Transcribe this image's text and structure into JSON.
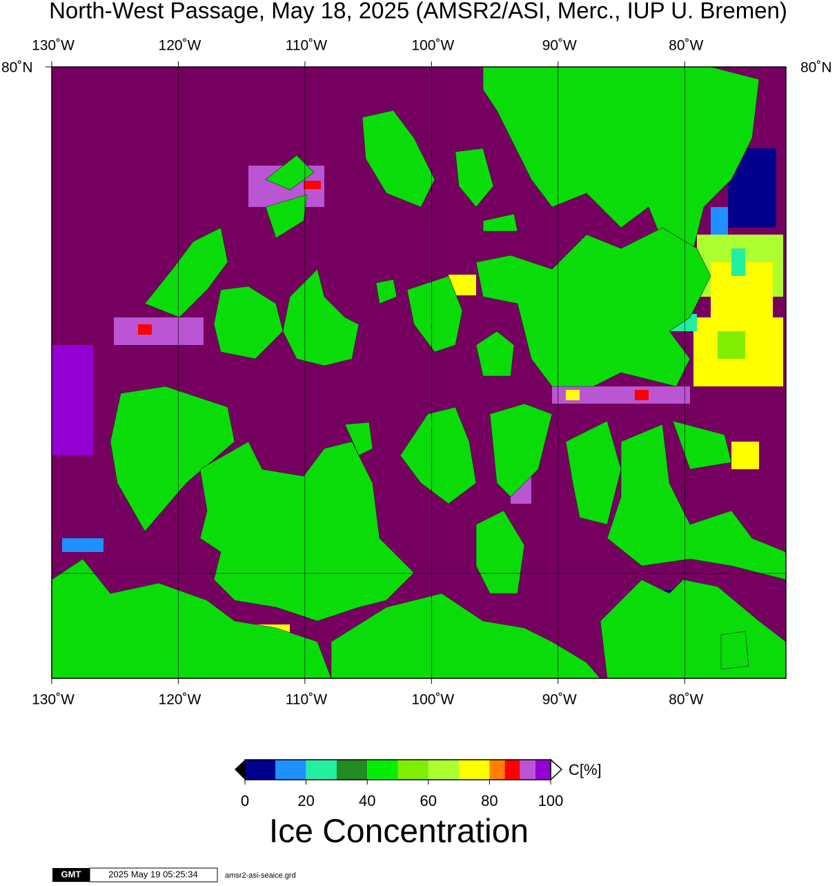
{
  "header": {
    "title": "North-West Passage, May 18, 2025 (AMSR2/ASI, Merc., IUP U. Bremen)"
  },
  "map": {
    "lon_range": [
      -130,
      -72
    ],
    "lon_ticks": [
      {
        "value": -130,
        "label": "130˚W"
      },
      {
        "value": -120,
        "label": "120˚W"
      },
      {
        "value": -110,
        "label": "110˚W"
      },
      {
        "value": -100,
        "label": "100˚W"
      },
      {
        "value": -90,
        "label": "90˚W"
      },
      {
        "value": -80,
        "label": "80˚W"
      }
    ],
    "lat_label": "80˚N"
  },
  "colorbar": {
    "title": "Ice Concentration",
    "unit": "C[%]",
    "range": [
      0,
      100
    ],
    "ticks": [
      0,
      20,
      40,
      60,
      80,
      100
    ],
    "bins": [
      0,
      10,
      20,
      30,
      40,
      50,
      60,
      70,
      80,
      85,
      90,
      95,
      100
    ],
    "colors": [
      "#00008b",
      "#1e90ff",
      "#20f0a0",
      "#228b22",
      "#00ee00",
      "#7fee00",
      "#adff2f",
      "#ffff00",
      "#ff8000",
      "#ff0000",
      "#ba55d3",
      "#9400d3"
    ]
  },
  "footer": {
    "logo": "GMT",
    "timestamp": "2025 May 19 05:25:34",
    "file": "amsr2-asi-seaice.grd"
  }
}
